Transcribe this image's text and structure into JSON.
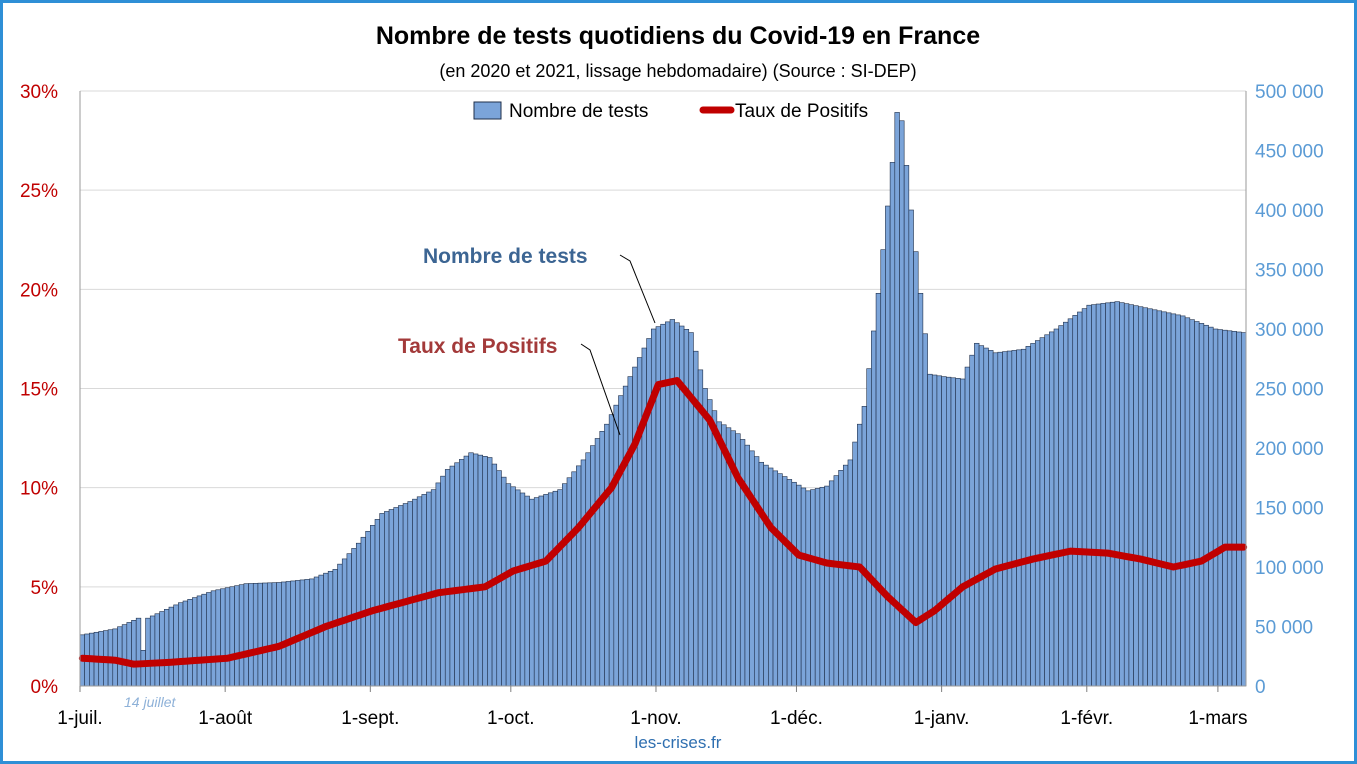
{
  "chart_data": {
    "type": "bar",
    "title": "Nombre de tests quotidiens du Covid-19 en France",
    "subtitle": "(en 2020 et 2021, lissage hebdomadaire) (Source : SI-DEP)",
    "x_ticks": [
      "1-juil.",
      "1-août",
      "1-sept.",
      "1-oct.",
      "1-nov.",
      "1-déc.",
      "1-janv.",
      "1-févr.",
      "1-mars"
    ],
    "y_left_ticks": [
      "0%",
      "5%",
      "10%",
      "15%",
      "20%",
      "25%",
      "30%"
    ],
    "y_right_ticks": [
      "0",
      "50 000",
      "100 000",
      "150 000",
      "200 000",
      "250 000",
      "300 000",
      "350 000",
      "400 000",
      "450 000",
      "500 000"
    ],
    "y_left_range": [
      0,
      30
    ],
    "y_right_range": [
      0,
      500000
    ],
    "grid": true,
    "legend_position": "top-center",
    "legend": [
      "Nombre de tests",
      "Taux de Positifs"
    ],
    "annotations": {
      "tests": "Nombre de tests",
      "taux": "Taux de Positifs",
      "juillet": "14 juillet"
    },
    "source_text": "les-crises.fr",
    "colors": {
      "bars": "#7ba4d9",
      "bar_edge": "#1f2f4a",
      "line": "#c00000",
      "left_axis": "#c00000",
      "right_axis": "#5b9bd5",
      "frame": "#2e8fd6"
    },
    "tests_anchors": [
      [
        "2020-07-01",
        43000
      ],
      [
        "2020-07-08",
        48000
      ],
      [
        "2020-07-13",
        57000
      ],
      [
        "2020-07-14",
        30000
      ],
      [
        "2020-07-15",
        57000
      ],
      [
        "2020-07-22",
        70000
      ],
      [
        "2020-07-29",
        80000
      ],
      [
        "2020-08-05",
        86000
      ],
      [
        "2020-08-12",
        87000
      ],
      [
        "2020-08-19",
        90000
      ],
      [
        "2020-08-24",
        98000
      ],
      [
        "2020-08-29",
        120000
      ],
      [
        "2020-09-03",
        145000
      ],
      [
        "2020-09-09",
        155000
      ],
      [
        "2020-09-14",
        165000
      ],
      [
        "2020-09-17",
        182000
      ],
      [
        "2020-09-22",
        196000
      ],
      [
        "2020-09-26",
        192000
      ],
      [
        "2020-09-30",
        170000
      ],
      [
        "2020-10-05",
        157000
      ],
      [
        "2020-10-11",
        165000
      ],
      [
        "2020-10-16",
        190000
      ],
      [
        "2020-10-21",
        220000
      ],
      [
        "2020-10-26",
        260000
      ],
      [
        "2020-10-31",
        300000
      ],
      [
        "2020-11-04",
        308000
      ],
      [
        "2020-11-08",
        297000
      ],
      [
        "2020-11-11",
        250000
      ],
      [
        "2020-11-14",
        222000
      ],
      [
        "2020-11-18",
        212000
      ],
      [
        "2020-11-23",
        188000
      ],
      [
        "2020-11-28",
        176000
      ],
      [
        "2020-12-03",
        164000
      ],
      [
        "2020-12-07",
        168000
      ],
      [
        "2020-12-12",
        190000
      ],
      [
        "2020-12-15",
        235000
      ],
      [
        "2020-12-18",
        330000
      ],
      [
        "2020-12-21",
        440000
      ],
      [
        "2020-12-22",
        482000
      ],
      [
        "2020-12-23",
        475000
      ],
      [
        "2020-12-25",
        400000
      ],
      [
        "2020-12-27",
        330000
      ],
      [
        "2020-12-29",
        262000
      ],
      [
        "2021-01-01",
        260000
      ],
      [
        "2021-01-05",
        258000
      ],
      [
        "2021-01-08",
        288000
      ],
      [
        "2021-01-12",
        280000
      ],
      [
        "2021-01-18",
        283000
      ],
      [
        "2021-01-25",
        300000
      ],
      [
        "2021-02-01",
        320000
      ],
      [
        "2021-02-07",
        323000
      ],
      [
        "2021-02-14",
        317000
      ],
      [
        "2021-02-21",
        311000
      ],
      [
        "2021-02-28",
        300000
      ],
      [
        "2021-03-06",
        297000
      ]
    ],
    "taux_anchors": [
      [
        "2020-07-01",
        1.4
      ],
      [
        "2020-07-08",
        1.3
      ],
      [
        "2020-07-12",
        1.1
      ],
      [
        "2020-07-20",
        1.2
      ],
      [
        "2020-08-01",
        1.4
      ],
      [
        "2020-08-12",
        2.0
      ],
      [
        "2020-08-22",
        3.0
      ],
      [
        "2020-09-01",
        3.8
      ],
      [
        "2020-09-15",
        4.7
      ],
      [
        "2020-09-25",
        5.0
      ],
      [
        "2020-10-01",
        5.8
      ],
      [
        "2020-10-08",
        6.3
      ],
      [
        "2020-10-15",
        8.0
      ],
      [
        "2020-10-22",
        10.0
      ],
      [
        "2020-10-27",
        12.2
      ],
      [
        "2020-11-01",
        15.2
      ],
      [
        "2020-11-05",
        15.4
      ],
      [
        "2020-11-12",
        13.4
      ],
      [
        "2020-11-18",
        10.5
      ],
      [
        "2020-11-25",
        8.0
      ],
      [
        "2020-12-01",
        6.6
      ],
      [
        "2020-12-07",
        6.2
      ],
      [
        "2020-12-14",
        6.0
      ],
      [
        "2020-12-20",
        4.5
      ],
      [
        "2020-12-26",
        3.2
      ],
      [
        "2020-12-30",
        3.8
      ],
      [
        "2021-01-05",
        5.0
      ],
      [
        "2021-01-12",
        5.9
      ],
      [
        "2021-01-20",
        6.4
      ],
      [
        "2021-01-28",
        6.8
      ],
      [
        "2021-02-05",
        6.7
      ],
      [
        "2021-02-12",
        6.4
      ],
      [
        "2021-02-19",
        6.0
      ],
      [
        "2021-02-25",
        6.3
      ],
      [
        "2021-03-02",
        7.0
      ],
      [
        "2021-03-06",
        7.0
      ]
    ]
  }
}
